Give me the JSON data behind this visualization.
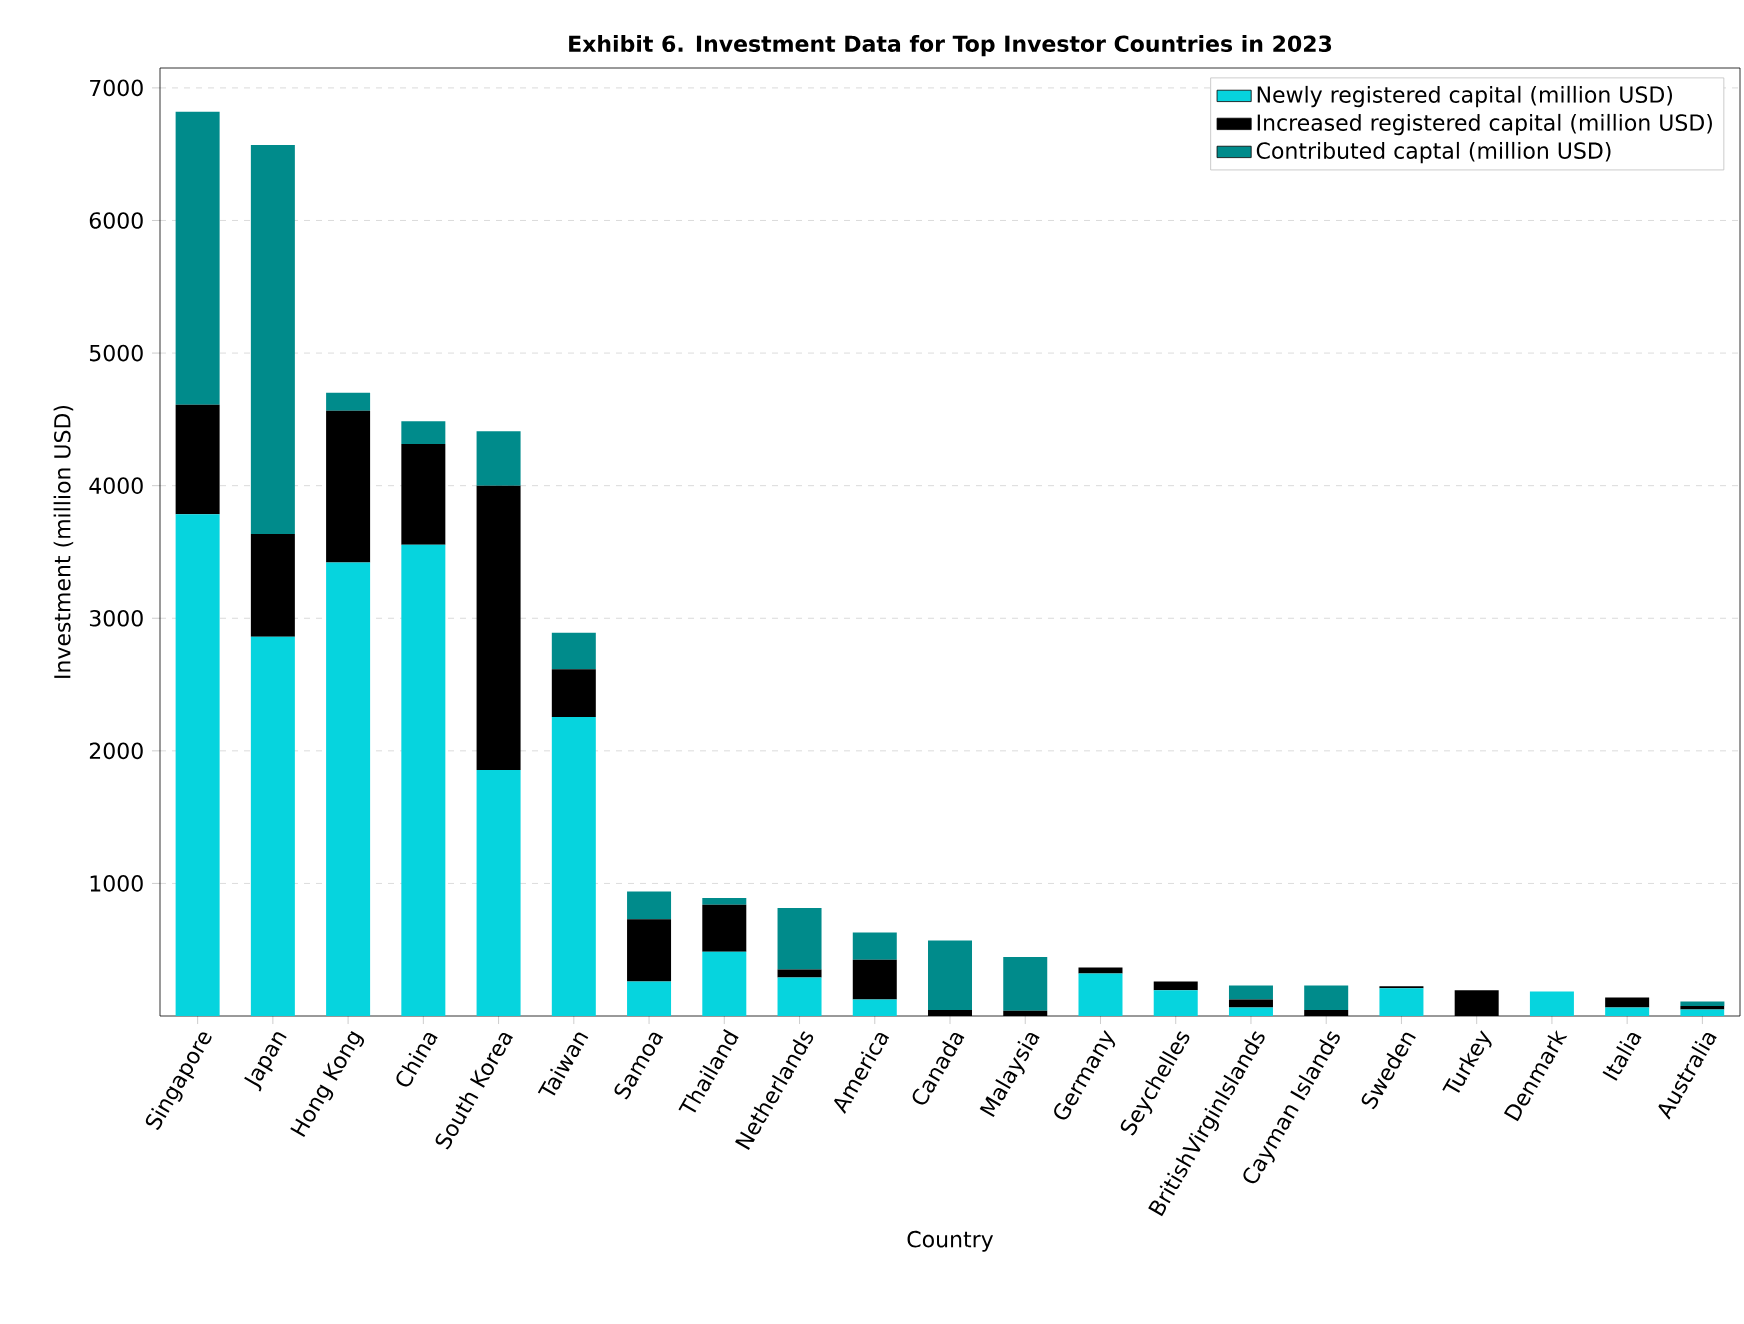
{
  "chart_data": {
    "type": "bar",
    "title": "Exhibit 6. Investment Data for Top Investor Countries in 2023",
    "xlabel": "Country",
    "ylabel": "Investment (million USD)",
    "categories": [
      "Singapore",
      "Japan",
      "Hong Kong",
      "China",
      "South Korea",
      "Taiwan",
      "Samoa",
      "Thailand",
      "Netherlands",
      "America",
      "Canada",
      "Malaysia",
      "Germany",
      "Seychelles",
      "BritishVirginIslands",
      "Cayman Islands",
      "Sweden",
      "Turkey",
      "Denmark",
      "Italia",
      "Australia"
    ],
    "series": [
      {
        "name": "Newly registered capital (million USD)",
        "color": "#06d4de",
        "values": [
          3785,
          2860,
          3420,
          3555,
          1855,
          2255,
          260,
          485,
          290,
          125,
          0,
          0,
          320,
          195,
          65,
          0,
          210,
          0,
          185,
          65,
          50
        ]
      },
      {
        "name": "Increased registered capital (million USD)",
        "color": "#000000",
        "values": [
          825,
          775,
          1145,
          760,
          2145,
          360,
          470,
          355,
          60,
          300,
          45,
          40,
          45,
          65,
          60,
          45,
          15,
          195,
          0,
          75,
          25
        ]
      },
      {
        "name": "Contributed captal (million USD)",
        "color": "#008b8b",
        "values": [
          2210,
          2935,
          135,
          170,
          410,
          275,
          210,
          50,
          465,
          205,
          525,
          405,
          0,
          0,
          105,
          185,
          0,
          0,
          0,
          0,
          35
        ]
      }
    ],
    "stacked": true,
    "ylim": [
      0,
      7150
    ],
    "yticks": [
      1000,
      2000,
      3000,
      4000,
      5000,
      6000,
      7000
    ],
    "grid": "y",
    "legend": "top right"
  }
}
